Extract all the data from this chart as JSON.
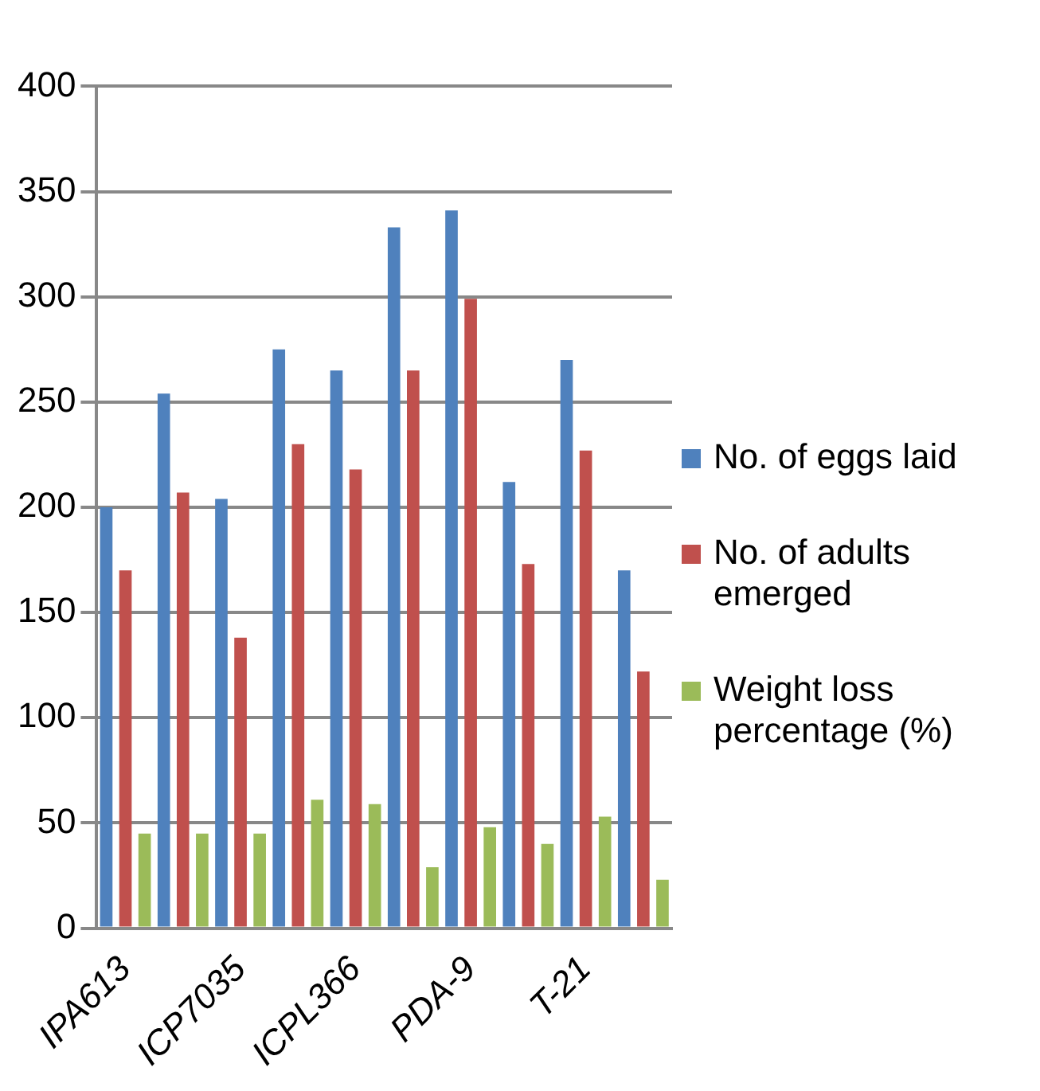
{
  "chart_data": {
    "type": "bar",
    "categories": [
      "IPA613",
      null,
      "ICP7035",
      null,
      "ICPL366",
      null,
      "PDA-9",
      null,
      "T-21",
      null
    ],
    "series": [
      {
        "name": "No. of eggs laid",
        "color": "#4f81bd",
        "values": [
          200,
          254,
          204,
          275,
          265,
          333,
          341,
          212,
          270,
          170
        ]
      },
      {
        "name": "No. of adults emerged",
        "color": "#c0504d",
        "values": [
          170,
          207,
          138,
          230,
          218,
          265,
          299,
          173,
          227,
          122
        ]
      },
      {
        "name": "Weight loss percentage (%)",
        "color": "#9bbb59",
        "values": [
          45,
          45,
          45,
          61,
          59,
          29,
          48,
          40,
          53,
          23
        ]
      }
    ],
    "ylim": [
      0,
      400
    ],
    "yticks": [
      0,
      50,
      100,
      150,
      200,
      250,
      300,
      350,
      400
    ],
    "grid": "y",
    "legend": "right"
  }
}
